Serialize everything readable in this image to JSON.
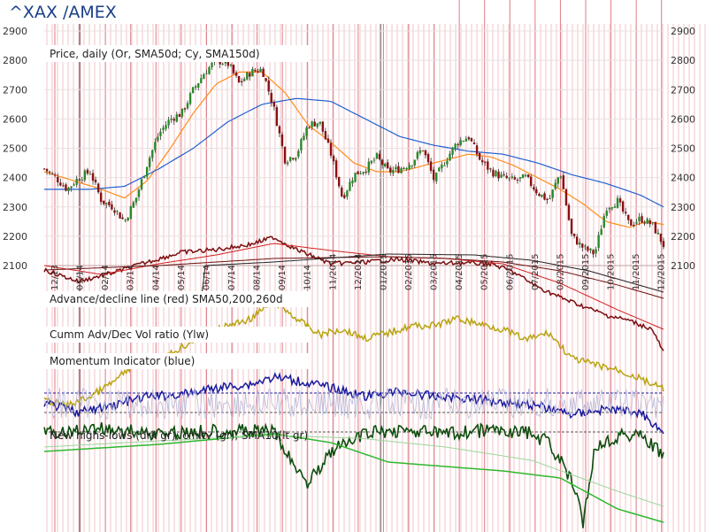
{
  "header": {
    "title": "^XAX /AMEX"
  },
  "chart_data": {
    "type": "line",
    "title": "^XAX /AMEX",
    "panels": [
      "Price, daily (Or, SMA50d; Cy, SMA150d)",
      "Advance/decline line (red) SMA50,200,260d",
      "Cumm Adv/Dec Vol ratio (Ylw)",
      "Momentum Indicator (blue)",
      "New highs-lows (drk gr), cmltv (gr), SMA10(lt gr)"
    ],
    "yticks": [
      2900,
      2800,
      2700,
      2600,
      2500,
      2400,
      2300,
      2200,
      2100
    ],
    "ylim": [
      2100,
      2900
    ],
    "month_labels": [
      "12/13",
      "01/14",
      "02/14",
      "03/14",
      "04/14",
      "05/14",
      "06/14",
      "07/14",
      "08/14",
      "09/14",
      "10/14",
      "11/2014",
      "12/2014",
      "01/2015",
      "02/2015",
      "03/2015",
      "04/2015",
      "05/2015",
      "06/2015",
      "07/2015",
      "08/2015",
      "09/2015",
      "10/2015",
      "11/2015",
      "12/2015"
    ],
    "price_anchors": [
      [
        0,
        2430
      ],
      [
        2,
        2400
      ],
      [
        4,
        2360
      ],
      [
        6,
        2400
      ],
      [
        8,
        2420
      ],
      [
        10,
        2320
      ],
      [
        12,
        2300
      ],
      [
        14,
        2250
      ],
      [
        16,
        2330
      ],
      [
        18,
        2450
      ],
      [
        20,
        2550
      ],
      [
        22,
        2600
      ],
      [
        24,
        2620
      ],
      [
        26,
        2700
      ],
      [
        28,
        2760
      ],
      [
        30,
        2800
      ],
      [
        32,
        2790
      ],
      [
        34,
        2720
      ],
      [
        36,
        2760
      ],
      [
        38,
        2770
      ],
      [
        40,
        2640
      ],
      [
        42,
        2460
      ],
      [
        44,
        2480
      ],
      [
        46,
        2580
      ],
      [
        48,
        2590
      ],
      [
        50,
        2480
      ],
      [
        52,
        2330
      ],
      [
        54,
        2410
      ],
      [
        56,
        2430
      ],
      [
        58,
        2470
      ],
      [
        60,
        2420
      ],
      [
        62,
        2430
      ],
      [
        64,
        2450
      ],
      [
        66,
        2500
      ],
      [
        68,
        2390
      ],
      [
        70,
        2460
      ],
      [
        72,
        2520
      ],
      [
        74,
        2540
      ],
      [
        76,
        2460
      ],
      [
        78,
        2420
      ],
      [
        80,
        2400
      ],
      [
        82,
        2390
      ],
      [
        84,
        2400
      ],
      [
        86,
        2350
      ],
      [
        88,
        2320
      ],
      [
        90,
        2420
      ],
      [
        92,
        2200
      ],
      [
        94,
        2160
      ],
      [
        96,
        2140
      ],
      [
        98,
        2300
      ],
      [
        100,
        2320
      ],
      [
        102,
        2240
      ],
      [
        104,
        2260
      ],
      [
        106,
        2240
      ],
      [
        108,
        2170
      ]
    ],
    "sma50_anchors": [
      [
        0,
        2420
      ],
      [
        5,
        2390
      ],
      [
        10,
        2360
      ],
      [
        14,
        2330
      ],
      [
        18,
        2390
      ],
      [
        22,
        2500
      ],
      [
        26,
        2620
      ],
      [
        30,
        2720
      ],
      [
        34,
        2760
      ],
      [
        38,
        2760
      ],
      [
        42,
        2690
      ],
      [
        46,
        2580
      ],
      [
        50,
        2520
      ],
      [
        54,
        2450
      ],
      [
        58,
        2420
      ],
      [
        62,
        2420
      ],
      [
        66,
        2440
      ],
      [
        70,
        2460
      ],
      [
        74,
        2480
      ],
      [
        78,
        2470
      ],
      [
        82,
        2440
      ],
      [
        86,
        2400
      ],
      [
        90,
        2360
      ],
      [
        94,
        2310
      ],
      [
        98,
        2250
      ],
      [
        102,
        2230
      ],
      [
        105,
        2250
      ],
      [
        108,
        2240
      ]
    ],
    "sma150_anchors": [
      [
        0,
        2360
      ],
      [
        8,
        2360
      ],
      [
        14,
        2370
      ],
      [
        20,
        2430
      ],
      [
        26,
        2500
      ],
      [
        32,
        2590
      ],
      [
        38,
        2650
      ],
      [
        44,
        2670
      ],
      [
        50,
        2660
      ],
      [
        56,
        2600
      ],
      [
        62,
        2540
      ],
      [
        68,
        2510
      ],
      [
        74,
        2490
      ],
      [
        80,
        2480
      ],
      [
        86,
        2450
      ],
      [
        92,
        2410
      ],
      [
        98,
        2380
      ],
      [
        104,
        2340
      ],
      [
        108,
        2300
      ]
    ],
    "series": [
      {
        "name": "SMA50d",
        "color": "#ff8c1a"
      },
      {
        "name": "SMA150d",
        "color": "#2060d0"
      },
      {
        "name": "Advance/decline line",
        "color": "#7a0f10"
      },
      {
        "name": "Cumm Adv/Dec Vol ratio",
        "color": "#b8a410"
      },
      {
        "name": "Momentum Indicator",
        "color": "#1a1a9e"
      },
      {
        "name": "New highs-lows",
        "color": "#0d4d0d"
      }
    ]
  }
}
